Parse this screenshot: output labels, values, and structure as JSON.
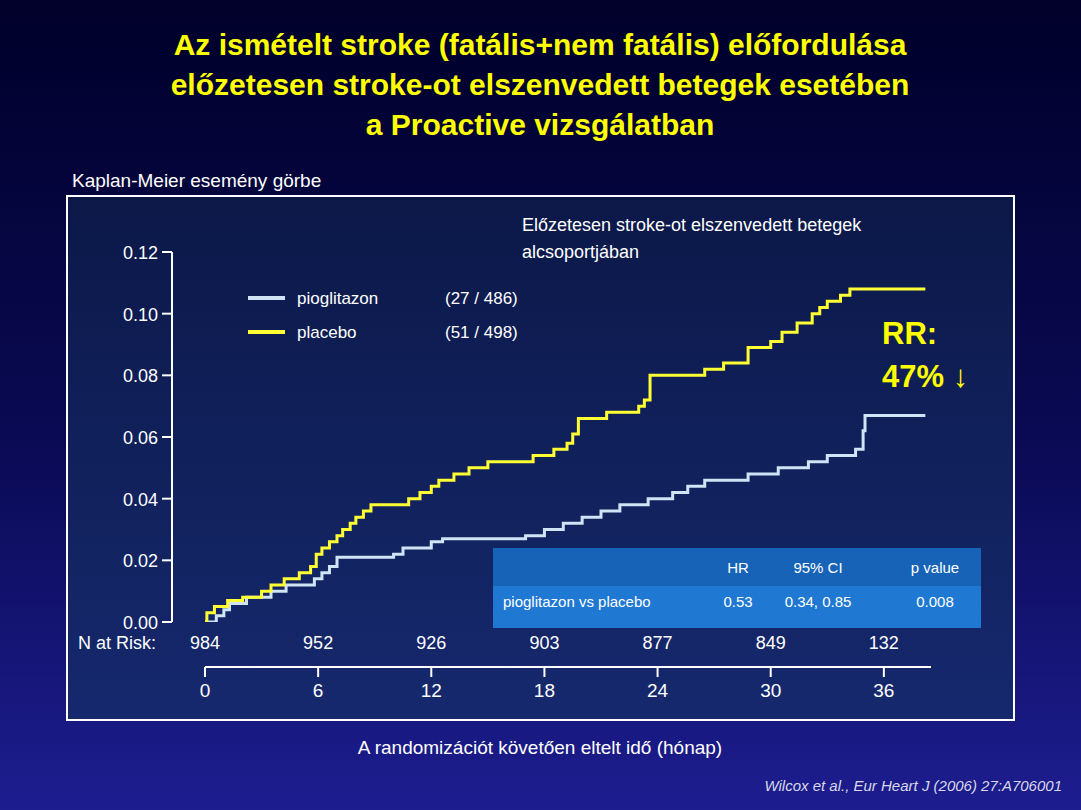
{
  "chart_data": {
    "type": "line",
    "line_style": "step",
    "title": [
      "Az ismételt stroke (fatális+nem fatális) előfordulása",
      "előzetesen stroke-ot elszenvedett betegek esetében",
      "a Proactive vizsgálatban"
    ],
    "subtitle": "Kaplan-Meier esemény görbe",
    "panel_note": [
      "Előzetesen stroke-ot elszenvedett betegek",
      "alcsoportjában"
    ],
    "x_label": "A randomizációt követően eltelt idő (hónap)",
    "source": "Wilcox et al., Eur Heart J (2006) 27:A706001",
    "annotation": [
      "RR:",
      "47% ↓"
    ],
    "xlim": [
      0,
      38.5
    ],
    "xticks": [
      0,
      6,
      12,
      18,
      24,
      30,
      36
    ],
    "ylim": [
      0,
      0.12
    ],
    "yticks": [
      {
        "value": 0,
        "label": "0.00"
      },
      0.02,
      0.04,
      0.06,
      0.08,
      {
        "value": 0.1,
        "label": "0.10"
      },
      0.12
    ],
    "grid": false,
    "legend": "upper-left",
    "n_at_risk": {
      "label": "N at Risk:",
      "x": [
        0,
        6,
        12,
        18,
        24,
        30,
        36
      ],
      "values": [
        984,
        952,
        926,
        903,
        877,
        849,
        132
      ]
    },
    "series": [
      {
        "name": "pioglitazon",
        "legend_note": "(27 / 486)",
        "color": "#cfe4f4",
        "x": [
          0,
          0.6,
          1,
          1.3,
          2.2,
          3.5,
          4.3,
          5.8,
          6.2,
          6.6,
          7,
          10,
          10.5,
          12,
          12.6,
          17,
          18,
          19,
          20,
          21,
          22,
          23.5,
          24.8,
          25.6,
          26.5,
          28.8,
          30.4,
          32,
          33,
          34.5,
          34.9,
          35,
          38.2
        ],
        "values": [
          0,
          0.002,
          0.004,
          0.006,
          0.008,
          0.01,
          0.012,
          0.014,
          0.016,
          0.018,
          0.021,
          0.022,
          0.024,
          0.026,
          0.027,
          0.028,
          0.03,
          0.032,
          0.034,
          0.036,
          0.038,
          0.04,
          0.042,
          0.044,
          0.046,
          0.048,
          0.05,
          0.052,
          0.054,
          0.056,
          0.062,
          0.067,
          0.067
        ]
      },
      {
        "name": "placebo",
        "legend_note": "(51 / 498)",
        "color": "#ffff33",
        "x": [
          0,
          0.1,
          0.5,
          1.2,
          2,
          3,
          3.5,
          4.2,
          5,
          5.6,
          5.9,
          6.2,
          6.6,
          7,
          7.3,
          7.7,
          8,
          8.4,
          8.8,
          10.8,
          11.4,
          12,
          12.4,
          13.2,
          14,
          15,
          17.4,
          18.5,
          19.2,
          19.5,
          19.8,
          21.3,
          23,
          23.3,
          23.6,
          26.5,
          27.5,
          28.8,
          30,
          30.6,
          31.4,
          32.2,
          32.6,
          33,
          33.7,
          34.2,
          38.2
        ],
        "values": [
          0,
          0.003,
          0.005,
          0.007,
          0.008,
          0.01,
          0.012,
          0.014,
          0.016,
          0.018,
          0.022,
          0.024,
          0.026,
          0.028,
          0.03,
          0.032,
          0.034,
          0.036,
          0.038,
          0.04,
          0.042,
          0.044,
          0.046,
          0.048,
          0.05,
          0.052,
          0.054,
          0.056,
          0.058,
          0.061,
          0.066,
          0.068,
          0.07,
          0.072,
          0.08,
          0.082,
          0.084,
          0.089,
          0.091,
          0.094,
          0.097,
          0.1,
          0.102,
          0.104,
          0.106,
          0.108,
          0.108
        ]
      }
    ],
    "stats_table": {
      "columns": [
        "HR",
        "95% CI",
        "p value"
      ],
      "rows": [
        {
          "label": "pioglitazon vs placebo",
          "values": [
            0.53,
            "0.34, 0.85",
            0.008
          ]
        }
      ]
    }
  }
}
